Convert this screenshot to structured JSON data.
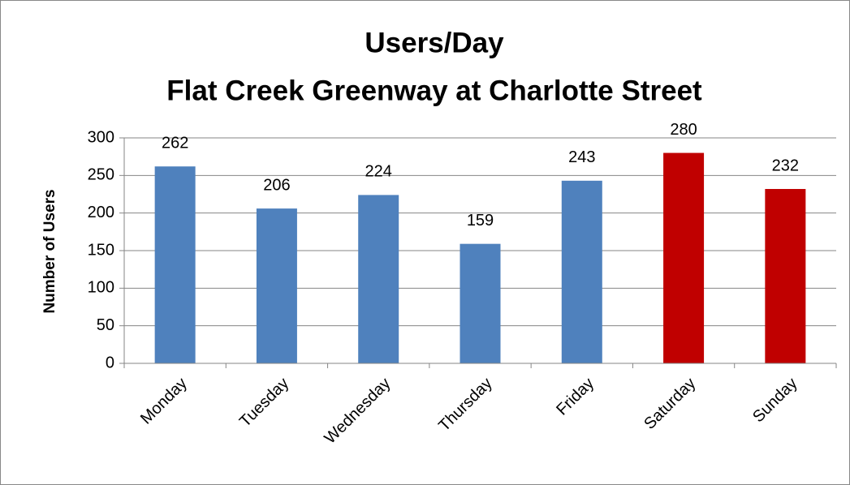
{
  "chart_data": {
    "type": "bar",
    "title": [
      "Users/Day",
      "Flat Creek Greenway at Charlotte Street"
    ],
    "ylabel": "Number of Users",
    "categories": [
      "Monday",
      "Tuesday",
      "Wednesday",
      "Thursday",
      "Friday",
      "Saturday",
      "Sunday"
    ],
    "values": [
      262,
      206,
      224,
      159,
      243,
      280,
      232
    ],
    "colors": [
      "#4f81bd",
      "#4f81bd",
      "#4f81bd",
      "#4f81bd",
      "#4f81bd",
      "#c00000",
      "#c00000"
    ],
    "ylim": [
      0,
      300
    ],
    "yticks": [
      0,
      50,
      100,
      150,
      200,
      250,
      300
    ],
    "grid": true
  }
}
